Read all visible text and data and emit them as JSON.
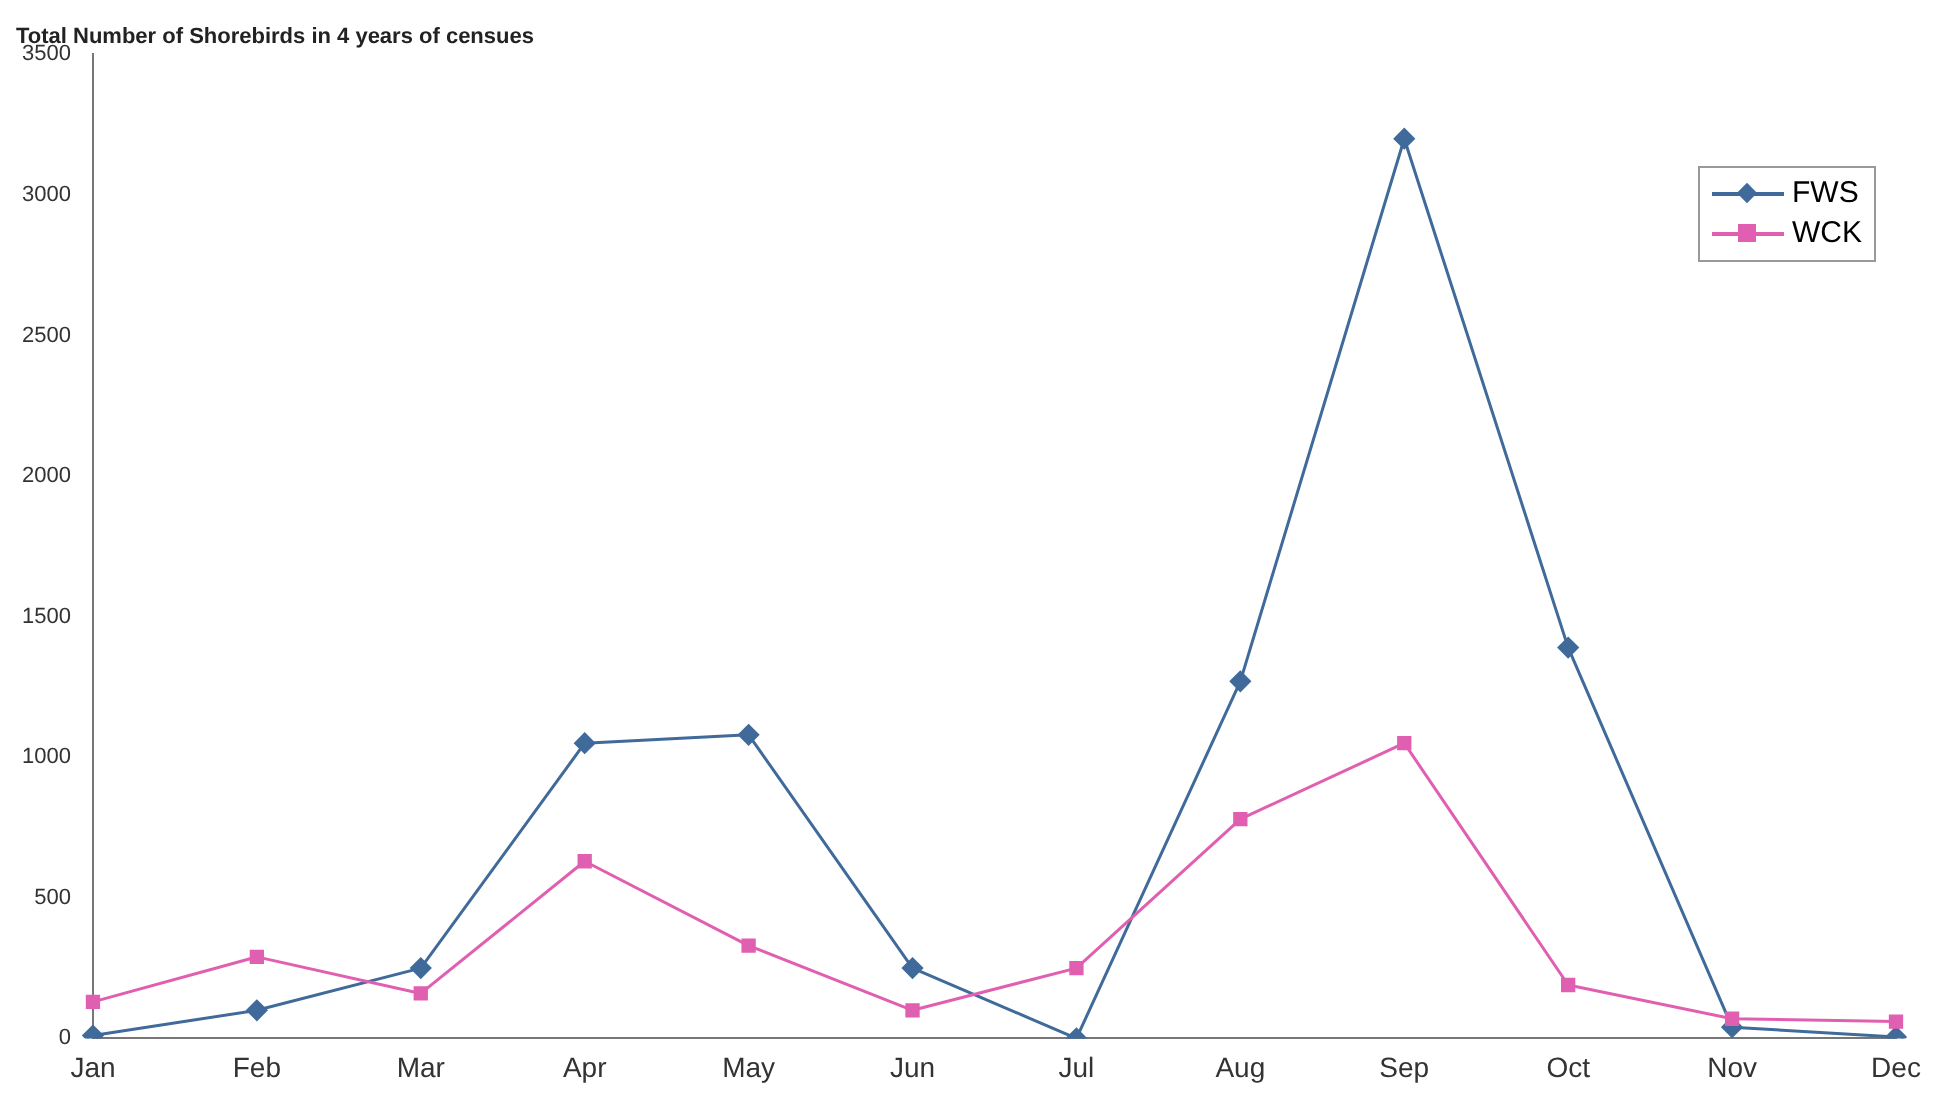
{
  "chart_data": {
    "type": "line",
    "title": "Total Number of Shorebirds in 4 years of censues",
    "categories": [
      "Jan",
      "Feb",
      "Mar",
      "Apr",
      "May",
      "Jun",
      "Jul",
      "Aug",
      "Sep",
      "Oct",
      "Nov",
      "Dec"
    ],
    "series": [
      {
        "name": "FWS",
        "color": "#3f6a9a",
        "marker": "diamond",
        "values": [
          10,
          100,
          250,
          1050,
          1080,
          250,
          0,
          1270,
          3200,
          1390,
          40,
          5
        ]
      },
      {
        "name": "WCK",
        "color": "#e05fb0",
        "marker": "square",
        "values": [
          130,
          290,
          160,
          630,
          330,
          100,
          250,
          780,
          1050,
          190,
          70,
          60
        ]
      }
    ],
    "ylim": [
      0,
      3500
    ],
    "yticks": [
      0,
      500,
      1000,
      1500,
      2000,
      2500,
      3000,
      3500
    ],
    "grid": false,
    "legend": "top right",
    "line_style": "solid"
  }
}
